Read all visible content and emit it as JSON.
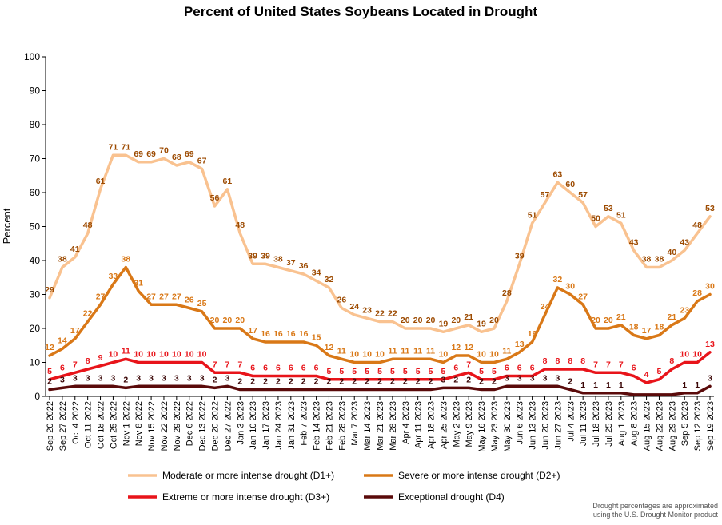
{
  "chart_data": {
    "type": "line",
    "title": "Percent of United States Soybeans Located in Drought",
    "ylabel": "Percent",
    "xlabel": "",
    "ylim": [
      0,
      100
    ],
    "yticks": [
      0,
      10,
      20,
      30,
      40,
      50,
      60,
      70,
      80,
      90,
      100
    ],
    "grid": false,
    "legend_position": "bottom",
    "x": [
      "Sep 20 2022",
      "Sep 27 2022",
      "Oct 4 2022",
      "Oct 11 2022",
      "Oct 18 2022",
      "Oct 25 2022",
      "Nov 1 2022",
      "Nov 8 2022",
      "Nov 15 2022",
      "Nov 22 2022",
      "Nov 29 2022",
      "Dec 6 2022",
      "Dec 13 2022",
      "Dec 20 2022",
      "Dec 27 2022",
      "Jan 3 2023",
      "Jan 10 2023",
      "Jan 17 2023",
      "Jan 24 2023",
      "Jan 31 2023",
      "Feb 7 2023",
      "Feb 14 2023",
      "Feb 21 2023",
      "Feb 28 2023",
      "Mar 7 2023",
      "Mar 14 2023",
      "Mar 21 2023",
      "Mar 28 2023",
      "Apr 4 2023",
      "Apr 11 2023",
      "Apr 18 2023",
      "Apr 25 2023",
      "May 2 2023",
      "May 9 2023",
      "May 16 2023",
      "May 23 2023",
      "May 30 2023",
      "Jun 6 2023",
      "Jun 13 2023",
      "Jun 20 2023",
      "Jun 27 2023",
      "Jul 4 2023",
      "Jul 11 2023",
      "Jul 18 2023",
      "Jul 25 2023",
      "Aug 1 2023",
      "Aug 8 2023",
      "Aug 15 2023",
      "Aug 22 2023",
      "Aug 29 2023",
      "Sep 5 2023",
      "Sep 12 2023",
      "Sep 19 2023"
    ],
    "x_tick_labels": [
      "Sep 20 2022",
      "Sep 27 2022",
      "Oct 4 2022",
      "Oct 11 2022",
      "Oct 18 2022",
      "Oct 25 2022",
      "Nov 1 2022",
      "Nov 8 2022",
      "Nov 15 2022",
      "Nov 22 2022",
      "Nov 29 2022",
      "Dec 6 2022",
      "Dec 13 2022",
      "Dec 20 2022",
      "Dec 27 2022",
      "Jan 3 2023",
      "Jan 10 2023",
      "Jan 17 2023",
      "Jan 24 2023",
      "Jan 31 2023",
      "Feb 7 2023",
      "Feb 14 2023",
      "Feb 21 2023",
      "Feb 28 2023",
      "Mar 7 2023",
      "Mar 14 2023",
      "Mar 21 2023",
      "Mar 28 2023",
      "Apr 4 2023",
      "Apr 11 2023",
      "Apr 18 2023",
      "Apr 25 2023",
      "May 2 2023",
      "May 9 2023",
      "May 16 2023",
      "May 23 2023",
      "May 30 2023",
      "Jun 6 2023",
      "Jun 13 2023",
      "Jun 20 2023",
      "Jun 27 2023",
      "Jul 4 2023",
      "Jul 11 2023",
      "Jul 18 2023",
      "Jul 25 2023",
      "Aug 1 2023",
      "Aug 8 2023",
      "Aug 15 2023",
      "Aug 22 2023",
      "Aug 29 2023",
      "Sep 5 2023",
      "Sep 12 2023",
      "Sep 19 2023"
    ],
    "series": [
      {
        "name": "Moderate or more intense drought (D1+)",
        "color": "#F9C290",
        "label_color": "#9C4A00",
        "values": [
          29,
          38,
          41,
          48,
          61,
          71,
          71,
          69,
          69,
          70,
          68,
          69,
          67,
          56,
          61,
          48,
          39,
          39,
          38,
          37,
          36,
          34,
          32,
          26,
          24,
          23,
          22,
          22,
          20,
          20,
          20,
          19,
          20,
          21,
          19,
          20,
          28,
          39,
          51,
          57,
          63,
          60,
          57,
          50,
          53,
          51,
          43,
          38,
          38,
          40,
          43,
          48,
          53
        ],
        "labels": [
          "29",
          "38",
          "41",
          "48",
          "61",
          "71",
          "71",
          "69",
          "69",
          "70",
          "68",
          "69",
          "67",
          "56",
          "61",
          "48",
          "39",
          "39",
          "38",
          "37",
          "36",
          "34",
          "32",
          "26",
          "24",
          "23",
          "22",
          "22",
          "20",
          "20",
          "20",
          "19",
          "20",
          "21",
          "19",
          "20",
          "28",
          "39",
          "51",
          "57",
          "63",
          "60",
          "57",
          "50",
          "53",
          "51",
          "43",
          "38",
          "38",
          "40",
          "43",
          "48",
          "53"
        ]
      },
      {
        "name": "Severe or more intense drought (D2+)",
        "color": "#D97817",
        "label_color": "#D97817",
        "values": [
          12,
          14,
          17,
          22,
          27,
          33,
          38,
          31,
          27,
          27,
          27,
          26,
          25,
          20,
          20,
          20,
          17,
          16,
          16,
          16,
          16,
          15,
          12,
          11,
          10,
          10,
          10,
          11,
          11,
          11,
          11,
          10,
          12,
          12,
          10,
          10,
          11,
          13,
          16,
          24,
          32,
          30,
          27,
          20,
          20,
          21,
          18,
          17,
          18,
          21,
          23,
          28,
          30
        ],
        "labels": [
          "12",
          "14",
          "17",
          "22",
          "27",
          "33",
          "38",
          "31",
          "27",
          "27",
          "27",
          "26",
          "25",
          "20",
          "20",
          "20",
          "17",
          "16",
          "16",
          "16",
          "16",
          "15",
          "12",
          "11",
          "10",
          "10",
          "10",
          "11",
          "11",
          "11",
          "11",
          "10",
          "12",
          "12",
          "10",
          "10",
          "11",
          "13",
          "16",
          "24",
          "32",
          "30",
          "27",
          "20",
          "20",
          "21",
          "18",
          "17",
          "18",
          "21",
          "23",
          "28",
          "30"
        ]
      },
      {
        "name": "Extreme or more intense drought (D3+)",
        "color": "#E8141A",
        "label_color": "#E8141A",
        "values": [
          5,
          6,
          7,
          8,
          9,
          10,
          11,
          10,
          10,
          10,
          10,
          10,
          10,
          7,
          7,
          7,
          6,
          6,
          6,
          6,
          6,
          6,
          5,
          5,
          5,
          5,
          5,
          5,
          5,
          5,
          5,
          5,
          6,
          7,
          5,
          5,
          6,
          6,
          6,
          8,
          8,
          8,
          8,
          7,
          7,
          7,
          6,
          4,
          5,
          8,
          10,
          10,
          13
        ],
        "labels": [
          "5",
          "6",
          "7",
          "8",
          "9",
          "10",
          "11",
          "10",
          "10",
          "10",
          "10",
          "10",
          "10",
          "7",
          "7",
          "7",
          "6",
          "6",
          "6",
          "6",
          "6",
          "6",
          "5",
          "5",
          "5",
          "5",
          "5",
          "5",
          "5",
          "5",
          "5",
          "5",
          "6",
          "7",
          "5",
          "5",
          "6",
          "6",
          "6",
          "8",
          "8",
          "8",
          "8",
          "7",
          "7",
          "7",
          "6",
          "4",
          "5",
          "8",
          "10",
          "10",
          "13"
        ]
      },
      {
        "name": "Exceptional drought (D4)",
        "color": "#5A0A0A",
        "label_color": "#3B0606",
        "values": [
          2,
          2.5,
          3,
          3,
          3,
          3,
          2.5,
          3,
          3,
          3,
          3,
          3,
          3,
          2.5,
          3,
          2,
          2,
          2,
          2,
          2,
          2,
          2,
          2,
          2,
          2,
          2,
          2,
          2,
          2,
          2,
          2,
          2.5,
          2.5,
          2.5,
          2,
          2,
          3,
          3,
          3,
          3,
          3,
          2,
          1,
          1,
          1,
          1,
          0.5,
          0.5,
          0.5,
          0.5,
          1,
          1,
          3
        ],
        "labels": [
          "2",
          "3",
          "3",
          "3",
          "3",
          "3",
          "2",
          "3",
          "3",
          "3",
          "3",
          "3",
          "3",
          "2",
          "3",
          "2",
          "2",
          "2",
          "2",
          "2",
          "2",
          "2",
          "2",
          "2",
          "2",
          "2",
          "2",
          "2",
          "2",
          "2",
          "2",
          "3",
          "2",
          "2",
          "2",
          "2",
          "3",
          "3",
          "3",
          "3",
          "3",
          "2",
          "1",
          "1",
          "1",
          "1",
          "",
          "",
          "",
          "",
          "1",
          "1",
          "3"
        ]
      }
    ],
    "note_lines": [
      "Drought percentages are approximated",
      "using the U.S. Drought Monitor product"
    ]
  }
}
